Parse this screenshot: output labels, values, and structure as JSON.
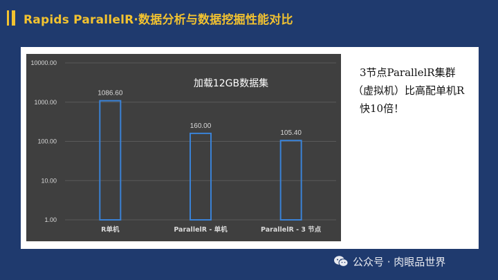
{
  "header": {
    "title": "Rapids ParallelR·数据分析与数据挖掘性能对比"
  },
  "annotation": {
    "line1": "3节点ParallelR集群",
    "line2": "（虚拟机）比高配单机R",
    "line3": "快10倍！"
  },
  "watermark": {
    "text": "公众号 · 肉眼品世界"
  },
  "colors": {
    "background": "#1f3a6e",
    "title": "#f2c230",
    "bar_stroke": "#3a82d6",
    "chart_bg": "#3f3f3f"
  },
  "chart_data": {
    "type": "bar",
    "title": "加载12GB数据集",
    "scale": "log",
    "categories": [
      "R单机",
      "ParallelR - 单机",
      "ParallelR - 3 节点"
    ],
    "values": [
      1086.6,
      160.0,
      105.4
    ],
    "data_labels": [
      "1086.60",
      "160.00",
      "105.40"
    ],
    "y_ticks": [
      1,
      10,
      100,
      1000,
      10000
    ],
    "y_tick_labels": [
      "1.00",
      "10.00",
      "100.00",
      "1000.00",
      "10000.00"
    ],
    "ylim": [
      1,
      10000
    ],
    "grid": true
  }
}
